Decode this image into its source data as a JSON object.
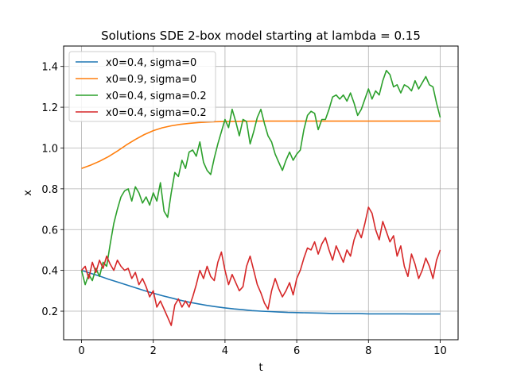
{
  "chart_data": {
    "type": "line",
    "title": "Solutions SDE 2-box model starting at lambda = 0.15",
    "xlabel": "t",
    "ylabel": "x",
    "xlim": [
      -0.5,
      10.5
    ],
    "ylim": [
      0.06,
      1.5
    ],
    "xticks": [
      0,
      2,
      4,
      6,
      8,
      10
    ],
    "yticks": [
      0.2,
      0.4,
      0.6,
      0.8,
      1.0,
      1.2,
      1.4
    ],
    "xtick_labels": [
      "0",
      "2",
      "4",
      "6",
      "8",
      "10"
    ],
    "ytick_labels": [
      "0.2",
      "0.4",
      "0.6",
      "0.8",
      "1.0",
      "1.2",
      "1.4"
    ],
    "grid": true,
    "legend_position": "top-left",
    "series": [
      {
        "name": "x0=0.4, sigma=0",
        "color": "#1f77b4",
        "x": [
          0,
          0.25,
          0.5,
          0.75,
          1,
          1.25,
          1.5,
          1.75,
          2,
          2.25,
          2.5,
          2.75,
          3,
          3.25,
          3.5,
          3.75,
          4,
          4.25,
          4.5,
          4.75,
          5,
          5.25,
          5.5,
          5.75,
          6,
          6.25,
          6.5,
          6.75,
          7,
          7.25,
          7.5,
          7.75,
          8,
          8.25,
          8.5,
          8.75,
          9,
          9.25,
          9.5,
          9.75,
          10
        ],
        "y": [
          0.4,
          0.386,
          0.372,
          0.357,
          0.343,
          0.329,
          0.315,
          0.301,
          0.288,
          0.276,
          0.265,
          0.254,
          0.244,
          0.236,
          0.228,
          0.222,
          0.216,
          0.211,
          0.207,
          0.203,
          0.2,
          0.198,
          0.196,
          0.194,
          0.193,
          0.192,
          0.191,
          0.19,
          0.189,
          0.189,
          0.188,
          0.188,
          0.187,
          0.187,
          0.187,
          0.187,
          0.187,
          0.186,
          0.186,
          0.186,
          0.186
        ]
      },
      {
        "name": "x0=0.9, sigma=0",
        "color": "#ff7f0e",
        "x": [
          0,
          0.25,
          0.5,
          0.75,
          1,
          1.25,
          1.5,
          1.75,
          2,
          2.25,
          2.5,
          2.75,
          3,
          3.25,
          3.5,
          3.75,
          4,
          4.5,
          5,
          5.5,
          6,
          6.5,
          7,
          7.5,
          8,
          8.5,
          9,
          9.5,
          10
        ],
        "y": [
          0.9,
          0.916,
          0.935,
          0.958,
          0.985,
          1.015,
          1.042,
          1.066,
          1.085,
          1.099,
          1.109,
          1.116,
          1.121,
          1.125,
          1.127,
          1.129,
          1.13,
          1.131,
          1.132,
          1.132,
          1.132,
          1.132,
          1.132,
          1.132,
          1.132,
          1.132,
          1.132,
          1.132,
          1.132
        ]
      },
      {
        "name": "x0=0.4, sigma=0.2",
        "color": "#2ca02c",
        "x": [
          0,
          0.1,
          0.2,
          0.3,
          0.4,
          0.5,
          0.6,
          0.7,
          0.8,
          0.9,
          1.0,
          1.1,
          1.2,
          1.3,
          1.4,
          1.5,
          1.6,
          1.7,
          1.8,
          1.9,
          2.0,
          2.1,
          2.2,
          2.3,
          2.4,
          2.5,
          2.6,
          2.7,
          2.8,
          2.9,
          3.0,
          3.1,
          3.2,
          3.3,
          3.4,
          3.5,
          3.6,
          3.7,
          3.8,
          3.9,
          4.0,
          4.1,
          4.2,
          4.3,
          4.4,
          4.5,
          4.6,
          4.7,
          4.8,
          4.9,
          5.0,
          5.1,
          5.2,
          5.3,
          5.4,
          5.5,
          5.6,
          5.7,
          5.8,
          5.9,
          6.0,
          6.1,
          6.2,
          6.3,
          6.4,
          6.5,
          6.6,
          6.7,
          6.8,
          6.9,
          7.0,
          7.1,
          7.2,
          7.3,
          7.4,
          7.5,
          7.6,
          7.7,
          7.8,
          7.9,
          8.0,
          8.1,
          8.2,
          8.3,
          8.4,
          8.5,
          8.6,
          8.7,
          8.8,
          8.9,
          9.0,
          9.1,
          9.2,
          9.3,
          9.4,
          9.5,
          9.6,
          9.7,
          9.8,
          9.9,
          10.0
        ],
        "y": [
          0.4,
          0.33,
          0.38,
          0.35,
          0.41,
          0.37,
          0.44,
          0.42,
          0.53,
          0.63,
          0.7,
          0.76,
          0.79,
          0.8,
          0.74,
          0.81,
          0.78,
          0.73,
          0.76,
          0.72,
          0.78,
          0.74,
          0.83,
          0.69,
          0.66,
          0.78,
          0.88,
          0.86,
          0.94,
          0.9,
          0.98,
          0.99,
          0.96,
          1.03,
          0.93,
          0.89,
          0.87,
          0.95,
          1.02,
          1.08,
          1.14,
          1.1,
          1.19,
          1.13,
          1.06,
          1.14,
          1.13,
          1.02,
          1.08,
          1.15,
          1.19,
          1.12,
          1.06,
          1.03,
          0.97,
          0.93,
          0.89,
          0.94,
          0.98,
          0.94,
          0.97,
          0.99,
          1.09,
          1.16,
          1.18,
          1.17,
          1.09,
          1.14,
          1.14,
          1.19,
          1.25,
          1.26,
          1.24,
          1.26,
          1.23,
          1.27,
          1.22,
          1.16,
          1.19,
          1.24,
          1.29,
          1.24,
          1.28,
          1.26,
          1.33,
          1.38,
          1.36,
          1.3,
          1.31,
          1.27,
          1.31,
          1.3,
          1.28,
          1.33,
          1.29,
          1.32,
          1.35,
          1.31,
          1.3,
          1.22,
          1.15
        ]
      },
      {
        "name": "x0=0.4, sigma=0.2",
        "color": "#d62728",
        "x": [
          0,
          0.1,
          0.2,
          0.3,
          0.4,
          0.5,
          0.6,
          0.7,
          0.8,
          0.9,
          1.0,
          1.1,
          1.2,
          1.3,
          1.4,
          1.5,
          1.6,
          1.7,
          1.8,
          1.9,
          2.0,
          2.1,
          2.2,
          2.3,
          2.4,
          2.5,
          2.6,
          2.7,
          2.8,
          2.9,
          3.0,
          3.1,
          3.2,
          3.3,
          3.4,
          3.5,
          3.6,
          3.7,
          3.8,
          3.9,
          4.0,
          4.1,
          4.2,
          4.3,
          4.4,
          4.5,
          4.6,
          4.7,
          4.8,
          4.9,
          5.0,
          5.1,
          5.2,
          5.3,
          5.4,
          5.5,
          5.6,
          5.7,
          5.8,
          5.9,
          6.0,
          6.1,
          6.2,
          6.3,
          6.4,
          6.5,
          6.6,
          6.7,
          6.8,
          6.9,
          7.0,
          7.1,
          7.2,
          7.3,
          7.4,
          7.5,
          7.6,
          7.7,
          7.8,
          7.9,
          8.0,
          8.1,
          8.2,
          8.3,
          8.4,
          8.5,
          8.6,
          8.7,
          8.8,
          8.9,
          9.0,
          9.1,
          9.2,
          9.3,
          9.4,
          9.5,
          9.6,
          9.7,
          9.8,
          9.9,
          10.0
        ],
        "y": [
          0.4,
          0.42,
          0.36,
          0.44,
          0.39,
          0.45,
          0.41,
          0.47,
          0.43,
          0.4,
          0.45,
          0.42,
          0.4,
          0.41,
          0.36,
          0.39,
          0.33,
          0.36,
          0.32,
          0.27,
          0.3,
          0.22,
          0.25,
          0.21,
          0.17,
          0.13,
          0.23,
          0.26,
          0.22,
          0.25,
          0.22,
          0.27,
          0.33,
          0.4,
          0.36,
          0.42,
          0.37,
          0.35,
          0.44,
          0.49,
          0.4,
          0.33,
          0.38,
          0.34,
          0.3,
          0.32,
          0.42,
          0.47,
          0.4,
          0.33,
          0.29,
          0.24,
          0.21,
          0.3,
          0.36,
          0.31,
          0.27,
          0.3,
          0.34,
          0.28,
          0.36,
          0.4,
          0.46,
          0.51,
          0.5,
          0.54,
          0.48,
          0.53,
          0.56,
          0.5,
          0.45,
          0.52,
          0.48,
          0.44,
          0.5,
          0.47,
          0.55,
          0.6,
          0.56,
          0.63,
          0.71,
          0.68,
          0.6,
          0.55,
          0.64,
          0.59,
          0.54,
          0.57,
          0.47,
          0.52,
          0.42,
          0.37,
          0.48,
          0.43,
          0.36,
          0.4,
          0.46,
          0.42,
          0.36,
          0.45,
          0.5
        ]
      }
    ]
  }
}
